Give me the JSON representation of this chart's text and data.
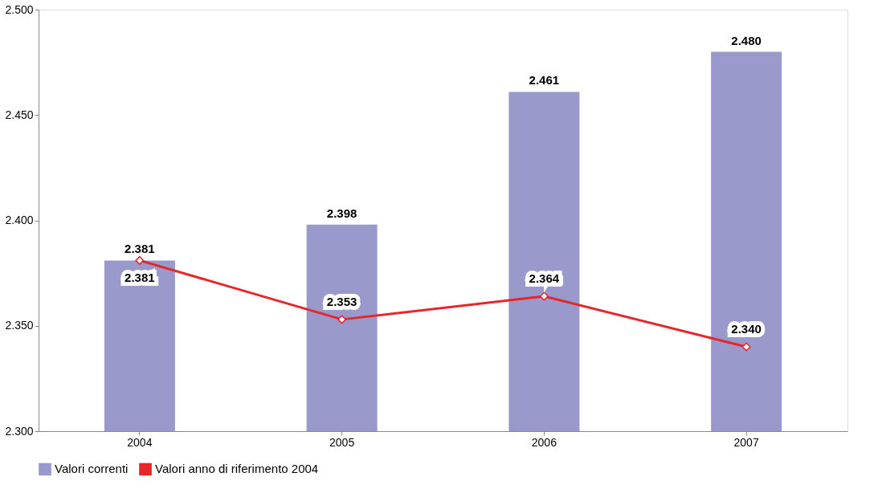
{
  "chart_data": {
    "type": "bar",
    "categories": [
      "2004",
      "2005",
      "2006",
      "2007"
    ],
    "series": [
      {
        "name": "Valori correnti",
        "color": "#9999cc",
        "values": [
          2381,
          2398,
          2461,
          2480
        ],
        "value_labels": [
          "2.381",
          "2.398",
          "2.461",
          "2.480"
        ]
      },
      {
        "name": "Valori anno di riferimento 2004",
        "type": "line",
        "color": "#e8262a",
        "marker": "diamond",
        "values": [
          2381,
          2353,
          2364,
          2340
        ],
        "value_labels": [
          "2.381",
          "2.353",
          "2.364",
          "2.340"
        ]
      }
    ],
    "ylim": [
      2300,
      2500
    ],
    "yticks": [
      {
        "value": 2300,
        "label": "2.300"
      },
      {
        "value": 2350,
        "label": "2.350"
      },
      {
        "value": 2400,
        "label": "2.400"
      },
      {
        "value": 2450,
        "label": "2.450"
      },
      {
        "value": 2500,
        "label": "2.500"
      }
    ],
    "grid": false,
    "legend": "bottom"
  }
}
